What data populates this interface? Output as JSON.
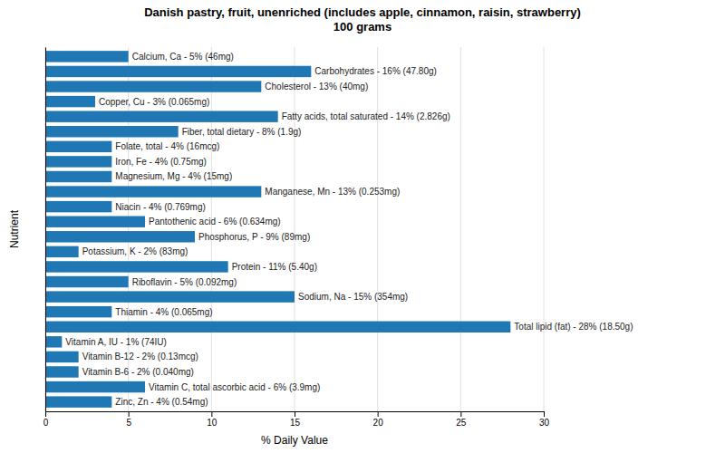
{
  "chart_data": {
    "type": "bar",
    "orientation": "horizontal",
    "title": "Danish pastry, fruit, unenriched (includes apple, cinnamon, raisin, strawberry)\n100 grams",
    "xlabel": "% Daily Value",
    "ylabel": "Nutrient",
    "categories": [
      "Calcium, Ca - 5% (46mg)",
      "Carbohydrates - 16% (47.80g)",
      "Cholesterol - 13% (40mg)",
      "Copper, Cu - 3% (0.065mg)",
      "Fatty acids, total saturated - 14% (2.826g)",
      "Fiber, total dietary - 8% (1.9g)",
      "Folate, total - 4% (16mcg)",
      "Iron, Fe - 4% (0.75mg)",
      "Magnesium, Mg - 4% (15mg)",
      "Manganese, Mn - 13% (0.253mg)",
      "Niacin - 4% (0.769mg)",
      "Pantothenic acid - 6% (0.634mg)",
      "Phosphorus, P - 9% (89mg)",
      "Potassium, K - 2% (83mg)",
      "Protein - 11% (5.40g)",
      "Riboflavin - 5% (0.092mg)",
      "Sodium, Na - 15% (354mg)",
      "Thiamin - 4% (0.065mg)",
      "Total lipid (fat) - 28% (18.50g)",
      "Vitamin A, IU - 1% (74IU)",
      "Vitamin B-12 - 2% (0.13mcg)",
      "Vitamin B-6 - 2% (0.040mg)",
      "Vitamin C, total ascorbic acid - 6% (3.9mg)",
      "Zinc, Zn - 4% (0.54mg)"
    ],
    "values": [
      5,
      16,
      13,
      3,
      14,
      8,
      4,
      4,
      4,
      13,
      4,
      6,
      9,
      2,
      11,
      5,
      15,
      4,
      28,
      1,
      2,
      2,
      6,
      4
    ],
    "xlim": [
      0,
      30
    ],
    "xticks": [
      0,
      5,
      10,
      15,
      20,
      25,
      30
    ],
    "grid": true,
    "tick_labels": "x"
  }
}
